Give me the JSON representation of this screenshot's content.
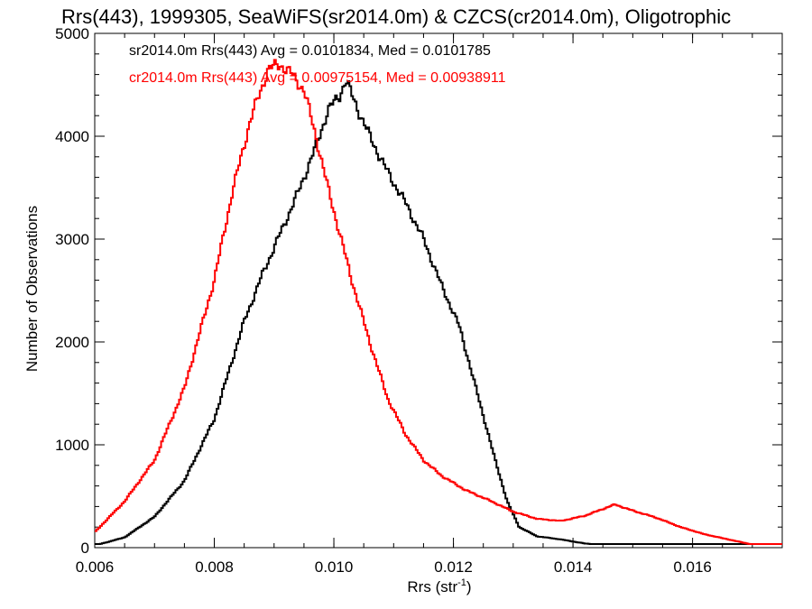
{
  "chart_data": {
    "type": "line",
    "title": "Rrs(443), 1999305, SeaWiFS(sr2014.0m) & CZCS(cr2014.0m), Oligotrophic",
    "xlabel": "Rrs (str",
    "xlabel_sup": "-1",
    "xlabel_end": ")",
    "ylabel": "Number of Observations",
    "xlim": [
      0.006,
      0.0175
    ],
    "ylim": [
      0,
      5000
    ],
    "xticks": [
      0.006,
      0.008,
      0.01,
      0.012,
      0.014,
      0.016
    ],
    "xtick_labels": [
      "0.006",
      "0.008",
      "0.010",
      "0.012",
      "0.014",
      "0.016"
    ],
    "yticks": [
      0,
      1000,
      2000,
      3000,
      4000,
      5000
    ],
    "ytick_labels": [
      "0",
      "1000",
      "2000",
      "3000",
      "4000",
      "5000"
    ],
    "x_minor_step": 0.0005,
    "y_minor_step": 200,
    "grid": false,
    "series": [
      {
        "name": "sr2014.0m",
        "color": "#000000",
        "annotation": "sr2014.0m Rrs(443) Avg = 0.0101834, Med = 0.0101785",
        "x": [
          0.006,
          0.0065,
          0.007,
          0.0075,
          0.008,
          0.0085,
          0.0088,
          0.0091,
          0.0094,
          0.0097,
          0.0099,
          0.0101,
          0.0102,
          0.0103,
          0.0106,
          0.0109,
          0.0112,
          0.0115,
          0.0118,
          0.0121,
          0.0124,
          0.0127,
          0.0129,
          0.0131,
          0.0134,
          0.0138,
          0.0142,
          0.0146,
          0.015,
          0.016,
          0.0175
        ],
        "y": [
          20,
          100,
          300,
          650,
          1250,
          2200,
          2650,
          3050,
          3450,
          3900,
          4250,
          4400,
          4550,
          4400,
          4000,
          3650,
          3350,
          3000,
          2550,
          2150,
          1500,
          850,
          450,
          200,
          110,
          80,
          40,
          20,
          10,
          3,
          0
        ]
      },
      {
        "name": "cr2014.0m",
        "color": "#ff0000",
        "annotation": "cr2014.0m Rrs(443) Avg = 0.00975154, Med = 0.00938911",
        "x": [
          0.006,
          0.0065,
          0.007,
          0.0075,
          0.008,
          0.0083,
          0.0086,
          0.0089,
          0.0091,
          0.0093,
          0.0095,
          0.0097,
          0.0099,
          0.0101,
          0.0103,
          0.0106,
          0.0109,
          0.0112,
          0.0115,
          0.0118,
          0.0122,
          0.0126,
          0.013,
          0.0134,
          0.0138,
          0.0142,
          0.0147,
          0.015,
          0.0154,
          0.0158,
          0.0162,
          0.0166,
          0.017,
          0.0175
        ],
        "y": [
          150,
          450,
          850,
          1550,
          2600,
          3450,
          4150,
          4650,
          4700,
          4600,
          4450,
          4000,
          3500,
          3050,
          2600,
          2000,
          1450,
          1100,
          850,
          700,
          560,
          460,
          350,
          280,
          260,
          310,
          420,
          360,
          290,
          200,
          130,
          80,
          30,
          10
        ]
      }
    ]
  }
}
